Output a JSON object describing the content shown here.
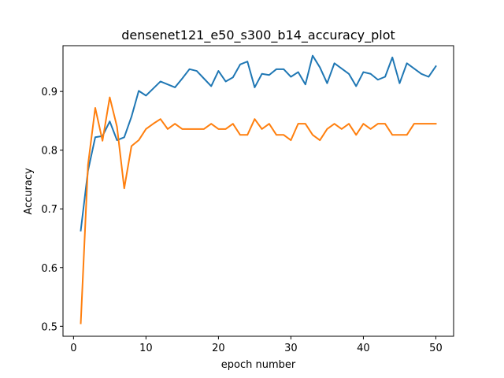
{
  "chart_data": {
    "type": "line",
    "title": "densenet121_e50_s300_b14_accuracy_plot",
    "xlabel": "epoch number",
    "ylabel": "Accuracy",
    "xlim": [
      -1.45,
      52.45
    ],
    "ylim": [
      0.483,
      0.978
    ],
    "xticks": [
      0,
      10,
      20,
      30,
      40,
      50
    ],
    "yticks": [
      0.5,
      0.6,
      0.7,
      0.8,
      0.9
    ],
    "ytick_labels": [
      "0.5",
      "0.6",
      "0.7",
      "0.8",
      "0.9"
    ],
    "grid": false,
    "x": [
      1,
      2,
      3,
      4,
      5,
      6,
      7,
      8,
      9,
      10,
      11,
      12,
      13,
      14,
      15,
      16,
      17,
      18,
      19,
      20,
      21,
      22,
      23,
      24,
      25,
      26,
      27,
      28,
      29,
      30,
      31,
      32,
      33,
      34,
      35,
      36,
      37,
      38,
      39,
      40,
      41,
      42,
      43,
      44,
      45,
      46,
      47,
      48,
      49,
      50
    ],
    "series": [
      {
        "color": "#1f77b4",
        "values": [
          0.663,
          0.765,
          0.822,
          0.824,
          0.849,
          0.817,
          0.822,
          0.857,
          0.901,
          0.893,
          0.905,
          0.917,
          0.912,
          0.907,
          0.922,
          0.938,
          0.935,
          0.922,
          0.909,
          0.935,
          0.917,
          0.924,
          0.946,
          0.951,
          0.907,
          0.93,
          0.928,
          0.938,
          0.938,
          0.925,
          0.933,
          0.912,
          0.961,
          0.941,
          0.914,
          0.948,
          0.939,
          0.93,
          0.909,
          0.933,
          0.93,
          0.92,
          0.925,
          0.958,
          0.914,
          0.948,
          0.939,
          0.93,
          0.925,
          0.943
        ]
      },
      {
        "color": "#ff7f0e",
        "values": [
          0.505,
          0.775,
          0.872,
          0.816,
          0.89,
          0.84,
          0.735,
          0.807,
          0.817,
          0.836,
          0.845,
          0.853,
          0.836,
          0.845,
          0.836,
          0.836,
          0.836,
          0.836,
          0.845,
          0.836,
          0.836,
          0.845,
          0.826,
          0.826,
          0.853,
          0.836,
          0.845,
          0.826,
          0.826,
          0.817,
          0.845,
          0.845,
          0.826,
          0.817,
          0.836,
          0.845,
          0.836,
          0.845,
          0.826,
          0.845,
          0.836,
          0.845,
          0.845,
          0.826,
          0.826,
          0.826,
          0.845,
          0.845,
          0.845,
          0.845
        ]
      }
    ]
  }
}
